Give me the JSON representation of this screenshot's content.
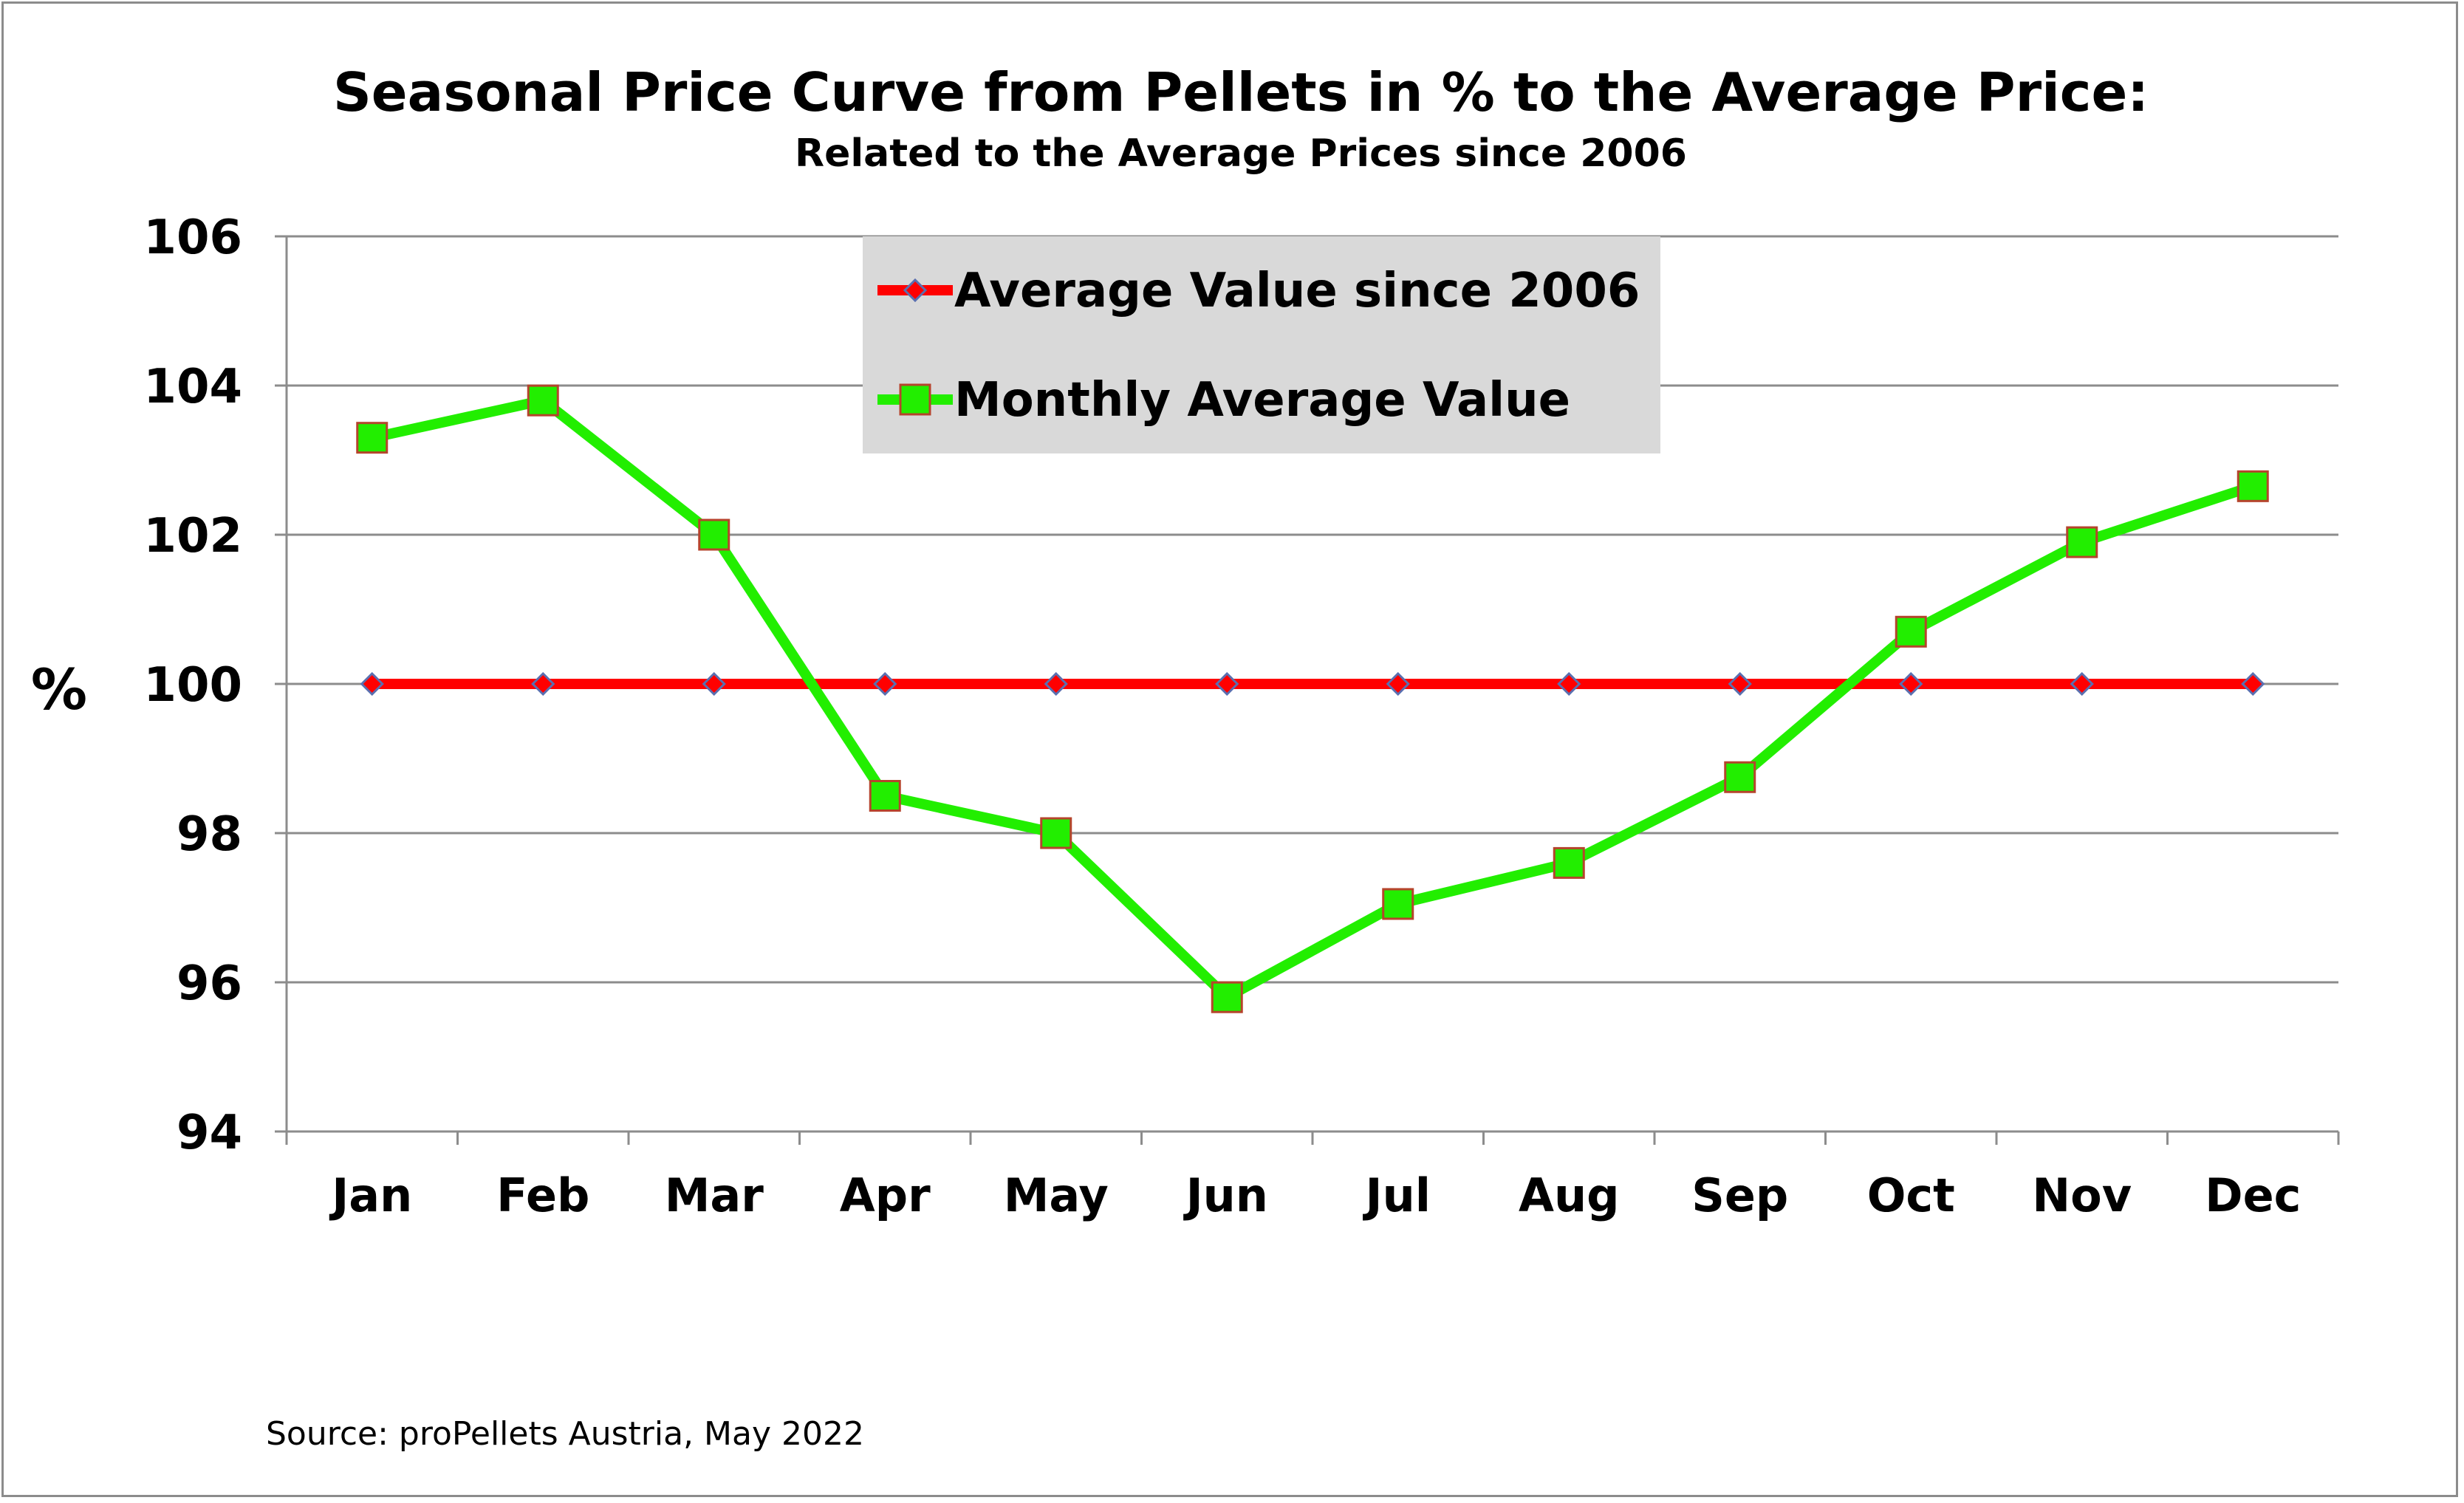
{
  "chart_data": {
    "type": "line",
    "title": "Seasonal Price Curve from Pellets in % to the Average Price:",
    "subtitle": "Related to the Average Prices since 2006",
    "ylabel": "%",
    "xlabel": "",
    "ylim": [
      94,
      106
    ],
    "yticks": [
      "94",
      "96",
      "98",
      "100",
      "102",
      "104",
      "106"
    ],
    "categories": [
      "Jan",
      "Feb",
      "Mar",
      "Apr",
      "May",
      "Jun",
      "Jul",
      "Aug",
      "Sep",
      "Oct",
      "Nov",
      "Dec"
    ],
    "grid": true,
    "legend_position": "top-center",
    "series": [
      {
        "name": "Average Value since 2006",
        "color": "#ff0000",
        "marker": "diamond",
        "values": [
          100,
          100,
          100,
          100,
          100,
          100,
          100,
          100,
          100,
          100,
          100,
          100
        ]
      },
      {
        "name": "Monthly Average Value",
        "color": "#22ee00",
        "marker": "square",
        "values": [
          103.3,
          103.8,
          102.0,
          98.5,
          98.0,
          95.8,
          97.05,
          97.6,
          98.75,
          100.7,
          101.9,
          102.65
        ]
      }
    ],
    "source": "Source: proPellets Austria, May 2022"
  }
}
